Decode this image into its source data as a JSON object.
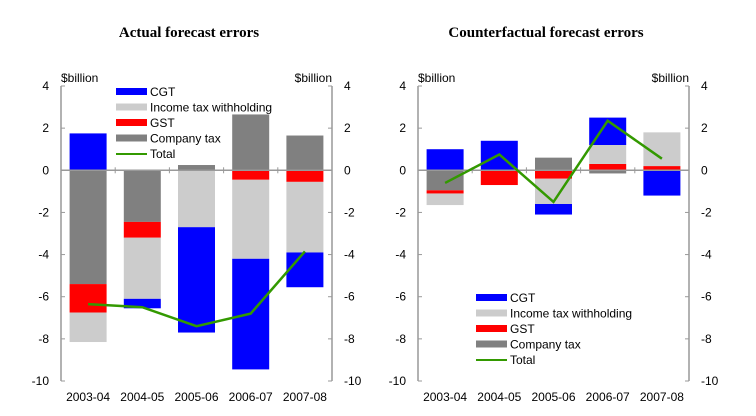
{
  "chart_data": [
    {
      "type": "bar",
      "stacked": true,
      "title": "Actual forecast errors",
      "ylabel_left": "$billion",
      "ylabel_right": "$billion",
      "ylim": [
        -10,
        4
      ],
      "yticks": [
        4,
        2,
        0,
        -2,
        -4,
        -6,
        -8,
        -10
      ],
      "categories": [
        "2003-04",
        "2004-05",
        "2005-06",
        "2006-07",
        "2007-08"
      ],
      "legend_position": "top-left",
      "series": [
        {
          "name": "CGT",
          "kind": "bar",
          "color": "#0000ff",
          "values": [
            1.75,
            -0.45,
            -5.0,
            -5.25,
            -1.65
          ]
        },
        {
          "name": "Income tax withholding",
          "kind": "bar",
          "color": "#cccccc",
          "values": [
            -1.4,
            -2.9,
            -2.7,
            -3.75,
            -3.35
          ]
        },
        {
          "name": "GST",
          "kind": "bar",
          "color": "#ff0000",
          "values": [
            -1.35,
            -0.75,
            0.0,
            -0.45,
            -0.55
          ]
        },
        {
          "name": "Company tax",
          "kind": "bar",
          "color": "#808080",
          "values": [
            -5.4,
            -2.45,
            0.25,
            2.65,
            1.65
          ]
        },
        {
          "name": "Total",
          "kind": "line",
          "color": "#339900",
          "values": [
            -6.35,
            -6.5,
            -7.4,
            -6.8,
            -3.85
          ]
        }
      ]
    },
    {
      "type": "bar",
      "stacked": true,
      "title": "Counterfactual forecast errors",
      "ylabel_left": "$billion",
      "ylabel_right": "$billion",
      "ylim": [
        -10,
        4
      ],
      "yticks": [
        4,
        2,
        0,
        -2,
        -4,
        -6,
        -8,
        -10
      ],
      "categories": [
        "2003-04",
        "2004-05",
        "2005-06",
        "2006-07",
        "2007-08"
      ],
      "legend_position": "bottom-center",
      "series": [
        {
          "name": "CGT",
          "kind": "bar",
          "color": "#0000ff",
          "values": [
            1.0,
            1.4,
            -0.5,
            1.3,
            -1.2
          ]
        },
        {
          "name": "Income tax withholding",
          "kind": "bar",
          "color": "#cccccc",
          "values": [
            -0.55,
            0.0,
            -1.2,
            0.9,
            1.6
          ]
        },
        {
          "name": "GST",
          "kind": "bar",
          "color": "#ff0000",
          "values": [
            -0.15,
            -0.7,
            -0.4,
            0.3,
            0.2
          ]
        },
        {
          "name": "Company tax",
          "kind": "bar",
          "color": "#808080",
          "values": [
            -0.95,
            0.0,
            0.6,
            -0.15,
            0.0
          ]
        },
        {
          "name": "Total",
          "kind": "line",
          "color": "#339900",
          "values": [
            -0.6,
            0.75,
            -1.5,
            2.35,
            0.55
          ]
        }
      ]
    }
  ]
}
